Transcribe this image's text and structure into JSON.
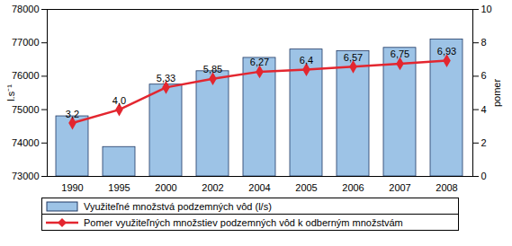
{
  "chart_data": {
    "type": "bar",
    "categories": [
      "1990",
      "1995",
      "2000",
      "2002",
      "2004",
      "2005",
      "2006",
      "2007",
      "2008"
    ],
    "series": [
      {
        "name": "Využiteľné množstvá podzemných vôd (l/s)",
        "type": "bar",
        "color": "#9dc3e6",
        "values": [
          74800,
          73880,
          75750,
          76150,
          76550,
          76800,
          76750,
          76850,
          77100
        ]
      },
      {
        "name": "Pomer využiteľných množstiev podzemných vôd k odberným množstvám",
        "type": "line",
        "axis": "y2",
        "color": "#e3262f",
        "marker": "diamond",
        "values": [
          3.2,
          4.0,
          5.33,
          5.85,
          6.27,
          6.4,
          6.57,
          6.75,
          6.93
        ],
        "value_labels": [
          "3,2",
          "4,0",
          "5,33",
          "5,85",
          "6,27",
          "6,4",
          "6,57",
          "6,75",
          "6,93"
        ]
      }
    ],
    "y_label": "l.s⁻¹",
    "y2_label": "pomer",
    "ylim": [
      73000,
      78000
    ],
    "yticks": [
      73000,
      74000,
      75000,
      76000,
      77000,
      78000
    ],
    "y2lim": [
      0,
      10
    ],
    "y2ticks": [
      0,
      2,
      4,
      6,
      8,
      10
    ],
    "data_labels": true,
    "legend": "bottom"
  }
}
